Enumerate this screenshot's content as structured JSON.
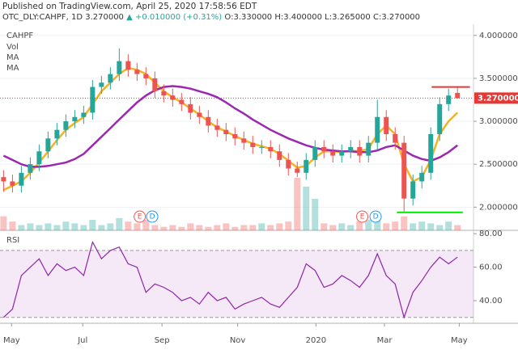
{
  "header": {
    "published": "Published on TradingView.com, April 25, 2020 17:58:56 EDT",
    "symbol": "OTC_DLY:CAHPF, 1D",
    "last": "3.270000",
    "change": "▲ +0.010000 (+0.31%)",
    "ohlc": "O:3.330000 H:3.400000 L:3.265000 C:3.270000"
  },
  "chart_data": [
    {
      "type": "candlestick",
      "title": "CAHPF",
      "up_color": "#26a69a",
      "down_color": "#ef5350",
      "xlim": [
        -0.4,
        52.8
      ],
      "ylim": [
        1.73,
        4.13
      ],
      "yticks": [
        {
          "value": 2,
          "label": "2.000000"
        },
        {
          "value": 2.5,
          "label": "2.500000"
        },
        {
          "value": 3,
          "label": "3.000000"
        },
        {
          "value": 3.5,
          "label": "3.500000"
        },
        {
          "value": 4,
          "label": "4.000000"
        }
      ],
      "grid": true,
      "open": [
        2.35,
        2.3,
        2.25,
        2.4,
        2.5,
        2.65,
        2.8,
        2.9,
        3.0,
        3.05,
        3.1,
        3.4,
        3.45,
        3.55,
        3.7,
        3.6,
        3.55,
        3.5,
        3.35,
        3.3,
        3.25,
        3.2,
        3.1,
        3.05,
        2.95,
        2.9,
        2.85,
        2.8,
        2.75,
        2.7,
        2.7,
        2.65,
        2.55,
        2.45,
        2.4,
        2.55,
        2.7,
        2.65,
        2.6,
        2.65,
        2.7,
        2.6,
        2.75,
        3.05,
        2.85,
        2.75,
        2.1,
        2.3,
        2.4,
        2.85,
        3.2,
        3.33
      ],
      "high": [
        2.43,
        2.38,
        2.48,
        2.58,
        2.73,
        2.88,
        2.98,
        3.08,
        3.13,
        3.18,
        3.48,
        3.53,
        3.63,
        3.85,
        3.78,
        3.68,
        3.63,
        3.58,
        3.43,
        3.38,
        3.33,
        3.28,
        3.18,
        3.13,
        3.03,
        2.98,
        2.93,
        2.88,
        2.83,
        2.78,
        2.78,
        2.73,
        2.63,
        2.53,
        2.63,
        2.78,
        2.78,
        2.73,
        2.73,
        2.78,
        2.78,
        2.83,
        3.25,
        3.13,
        2.93,
        2.83,
        2.38,
        2.48,
        2.93,
        3.28,
        3.38,
        3.4
      ],
      "low": [
        2.18,
        2.17,
        2.17,
        2.32,
        2.42,
        2.57,
        2.72,
        2.82,
        2.92,
        2.97,
        3.02,
        3.32,
        3.37,
        3.47,
        3.52,
        3.47,
        3.42,
        3.27,
        3.22,
        3.17,
        3.12,
        3.02,
        2.97,
        2.87,
        2.82,
        2.77,
        2.72,
        2.67,
        2.62,
        2.62,
        2.57,
        2.47,
        2.37,
        2.35,
        2.32,
        2.47,
        2.57,
        2.52,
        2.52,
        2.57,
        2.52,
        2.52,
        2.67,
        2.77,
        2.67,
        1.95,
        2.02,
        2.22,
        2.32,
        2.77,
        3.12,
        3.265
      ],
      "close": [
        2.3,
        2.25,
        2.4,
        2.5,
        2.65,
        2.8,
        2.9,
        3.0,
        3.05,
        3.1,
        3.4,
        3.45,
        3.55,
        3.7,
        3.6,
        3.55,
        3.5,
        3.35,
        3.3,
        3.25,
        3.2,
        3.1,
        3.05,
        2.95,
        2.9,
        2.85,
        2.8,
        2.75,
        2.7,
        2.7,
        2.65,
        2.55,
        2.45,
        2.4,
        2.55,
        2.7,
        2.65,
        2.6,
        2.65,
        2.7,
        2.6,
        2.75,
        3.05,
        2.85,
        2.75,
        2.1,
        2.3,
        2.4,
        2.85,
        3.2,
        3.3,
        3.27
      ],
      "volume": {
        "name": "Vol",
        "values": [
          40,
          25,
          15,
          20,
          15,
          20,
          15,
          25,
          20,
          15,
          30,
          15,
          20,
          35,
          25,
          20,
          30,
          15,
          10,
          15,
          10,
          20,
          15,
          10,
          15,
          20,
          10,
          15,
          15,
          20,
          15,
          20,
          25,
          150,
          125,
          90,
          20,
          15,
          20,
          15,
          25,
          30,
          35,
          20,
          25,
          40,
          20,
          25,
          20,
          15,
          25,
          15
        ]
      },
      "series": [
        {
          "name": "MA",
          "color": "#f5b324",
          "values": [
            2.2,
            2.25,
            2.3,
            2.4,
            2.52,
            2.65,
            2.78,
            2.9,
            2.98,
            3.05,
            3.2,
            3.35,
            3.45,
            3.55,
            3.62,
            3.6,
            3.55,
            3.45,
            3.35,
            3.28,
            3.22,
            3.15,
            3.08,
            3.0,
            2.93,
            2.88,
            2.83,
            2.78,
            2.74,
            2.71,
            2.68,
            2.62,
            2.54,
            2.46,
            2.48,
            2.58,
            2.65,
            2.65,
            2.64,
            2.66,
            2.65,
            2.68,
            2.85,
            2.95,
            2.85,
            2.5,
            2.3,
            2.35,
            2.55,
            2.85,
            3.0,
            3.1
          ]
        },
        {
          "name": "MA",
          "color": "#9c27b0",
          "values": [
            2.6,
            2.55,
            2.5,
            2.47,
            2.47,
            2.48,
            2.5,
            2.52,
            2.56,
            2.62,
            2.72,
            2.82,
            2.92,
            3.02,
            3.12,
            3.22,
            3.3,
            3.36,
            3.4,
            3.41,
            3.4,
            3.38,
            3.35,
            3.32,
            3.28,
            3.22,
            3.15,
            3.09,
            3.02,
            2.96,
            2.9,
            2.85,
            2.8,
            2.76,
            2.72,
            2.69,
            2.67,
            2.66,
            2.65,
            2.65,
            2.64,
            2.64,
            2.66,
            2.7,
            2.72,
            2.66,
            2.6,
            2.56,
            2.54,
            2.58,
            2.64,
            2.72
          ]
        }
      ],
      "last_price": {
        "value": 3.27,
        "label": "3.270000",
        "color": "#e53935"
      },
      "levels": [
        {
          "value": 3.4,
          "from": 48.1,
          "to": 52.4,
          "color": "#e53935"
        },
        {
          "value": 1.94,
          "from": 44.2,
          "to": 51.6,
          "color": "#00e600"
        }
      ],
      "events": [
        {
          "label": "E",
          "x": 15.3,
          "color": "#ef5350"
        },
        {
          "label": "D",
          "x": 16.7,
          "color": "#2196f3"
        },
        {
          "label": "E",
          "x": 40.3,
          "color": "#ef5350"
        },
        {
          "label": "D",
          "x": 41.8,
          "color": "#2196f3"
        }
      ]
    },
    {
      "type": "line",
      "title": "RSI",
      "xlim": [
        -0.4,
        52.8
      ],
      "ylim": [
        26.5,
        82
      ],
      "yticks": [
        {
          "value": 40,
          "label": "40.00"
        },
        {
          "value": 60,
          "label": "60.00"
        },
        {
          "value": 80,
          "label": "80.00"
        }
      ],
      "band": [
        30,
        70
      ],
      "band_color": "#9c27b0",
      "xticks": [
        {
          "value": 0.9,
          "label": "May"
        },
        {
          "value": 8.9,
          "label": "Jul"
        },
        {
          "value": 17.8,
          "label": "Sep"
        },
        {
          "value": 26.3,
          "label": "Nov"
        },
        {
          "value": 35.1,
          "label": "2020"
        },
        {
          "value": 42.8,
          "label": "Mar"
        },
        {
          "value": 51.2,
          "label": "May"
        }
      ],
      "series": [
        {
          "color": "#8e24aa",
          "values": [
            30,
            35,
            55,
            60,
            65,
            55,
            62,
            58,
            60,
            55,
            75,
            65,
            70,
            72,
            62,
            60,
            45,
            50,
            48,
            45,
            40,
            42,
            38,
            45,
            40,
            42,
            35,
            38,
            40,
            42,
            38,
            36,
            42,
            48,
            62,
            58,
            48,
            50,
            55,
            52,
            48,
            55,
            68,
            55,
            50,
            30,
            45,
            52,
            60,
            66,
            62,
            66
          ]
        }
      ]
    }
  ]
}
